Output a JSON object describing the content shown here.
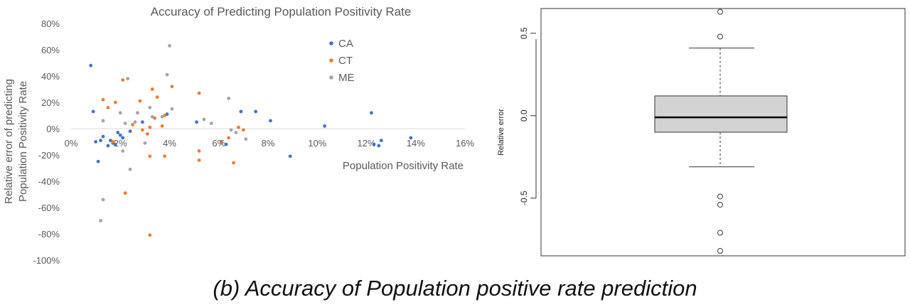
{
  "caption": "(b)   Accuracy of Population positive rate prediction",
  "chart_data": [
    {
      "type": "scatter",
      "title": "Accuracy of Predicting Population Positivity Rate",
      "xlabel": "Population Positivity Rate",
      "ylabel_line1": "Relative error of predicting",
      "ylabel_line2": "Population Positivity Rate",
      "x_ticks": [
        "0%",
        "2%",
        "4%",
        "6%",
        "8%",
        "10%",
        "12%",
        "14%",
        "16%"
      ],
      "y_ticks": [
        "80%",
        "60%",
        "40%",
        "20%",
        "0%",
        "-20%",
        "-40%",
        "-60%",
        "-80%",
        "-100%"
      ],
      "xlim": [
        0,
        16
      ],
      "ylim": [
        -100,
        80
      ],
      "grid": false,
      "legend_position": "top-right",
      "series": [
        {
          "name": "CA",
          "color": "#4472C4",
          "points": [
            [
              0.8,
              48
            ],
            [
              0.9,
              13
            ],
            [
              1.0,
              -10
            ],
            [
              1.1,
              -25
            ],
            [
              1.2,
              -9
            ],
            [
              1.3,
              -6
            ],
            [
              1.5,
              -13
            ],
            [
              1.6,
              -9
            ],
            [
              1.7,
              -11
            ],
            [
              1.8,
              -12
            ],
            [
              1.9,
              -3
            ],
            [
              2.0,
              -5
            ],
            [
              2.1,
              -7
            ],
            [
              2.4,
              -2
            ],
            [
              2.9,
              5
            ],
            [
              3.9,
              11
            ],
            [
              5.1,
              5
            ],
            [
              6.1,
              -10
            ],
            [
              6.3,
              -12
            ],
            [
              6.9,
              13
            ],
            [
              7.5,
              13
            ],
            [
              8.1,
              6
            ],
            [
              8.9,
              -21
            ],
            [
              10.3,
              2
            ],
            [
              12.2,
              12
            ],
            [
              12.3,
              -12
            ],
            [
              12.5,
              -13
            ],
            [
              12.6,
              -9
            ],
            [
              13.8,
              -7
            ]
          ]
        },
        {
          "name": "CT",
          "color": "#ED7D31",
          "points": [
            [
              1.3,
              22
            ],
            [
              1.5,
              16
            ],
            [
              1.7,
              -10
            ],
            [
              1.8,
              20
            ],
            [
              2.1,
              37
            ],
            [
              2.2,
              -49
            ],
            [
              2.5,
              3
            ],
            [
              2.8,
              21
            ],
            [
              2.9,
              -1
            ],
            [
              3.1,
              -4
            ],
            [
              3.2,
              1
            ],
            [
              3.2,
              -21
            ],
            [
              3.3,
              30
            ],
            [
              3.4,
              8
            ],
            [
              3.5,
              24
            ],
            [
              3.7,
              2
            ],
            [
              3.8,
              -21
            ],
            [
              3.8,
              10
            ],
            [
              4.1,
              32
            ],
            [
              5.2,
              27
            ],
            [
              5.2,
              -24
            ],
            [
              5.2,
              -17
            ],
            [
              6.1,
              -11
            ],
            [
              6.4,
              -7
            ],
            [
              6.6,
              -26
            ],
            [
              6.8,
              1
            ],
            [
              7.0,
              -1
            ],
            [
              3.2,
              -81
            ]
          ]
        },
        {
          "name": "ME",
          "color": "#A5A5A5",
          "points": [
            [
              1.2,
              -70
            ],
            [
              1.3,
              -54
            ],
            [
              1.3,
              6
            ],
            [
              2.0,
              12
            ],
            [
              2.1,
              -17
            ],
            [
              2.2,
              4
            ],
            [
              2.3,
              38
            ],
            [
              2.4,
              -31
            ],
            [
              2.6,
              5
            ],
            [
              2.7,
              12
            ],
            [
              3.0,
              -11
            ],
            [
              3.2,
              16
            ],
            [
              3.3,
              9
            ],
            [
              3.7,
              9
            ],
            [
              3.9,
              41
            ],
            [
              4.0,
              63
            ],
            [
              4.1,
              15
            ],
            [
              5.4,
              7
            ],
            [
              5.7,
              4
            ],
            [
              6.4,
              23
            ],
            [
              6.5,
              -1
            ],
            [
              6.7,
              -3
            ],
            [
              7.1,
              -8
            ]
          ]
        }
      ]
    },
    {
      "type": "box",
      "ylabel": "Relative error",
      "y_ticks": [
        "0.5",
        "0.0",
        "-0.5"
      ],
      "ylim": [
        -0.85,
        0.65
      ],
      "grid": false,
      "box": {
        "min": -0.31,
        "q1": -0.1,
        "median": -0.01,
        "q3": 0.12,
        "max": 0.41
      },
      "outliers": [
        0.63,
        0.48,
        -0.49,
        -0.54,
        -0.71,
        -0.82
      ]
    }
  ]
}
